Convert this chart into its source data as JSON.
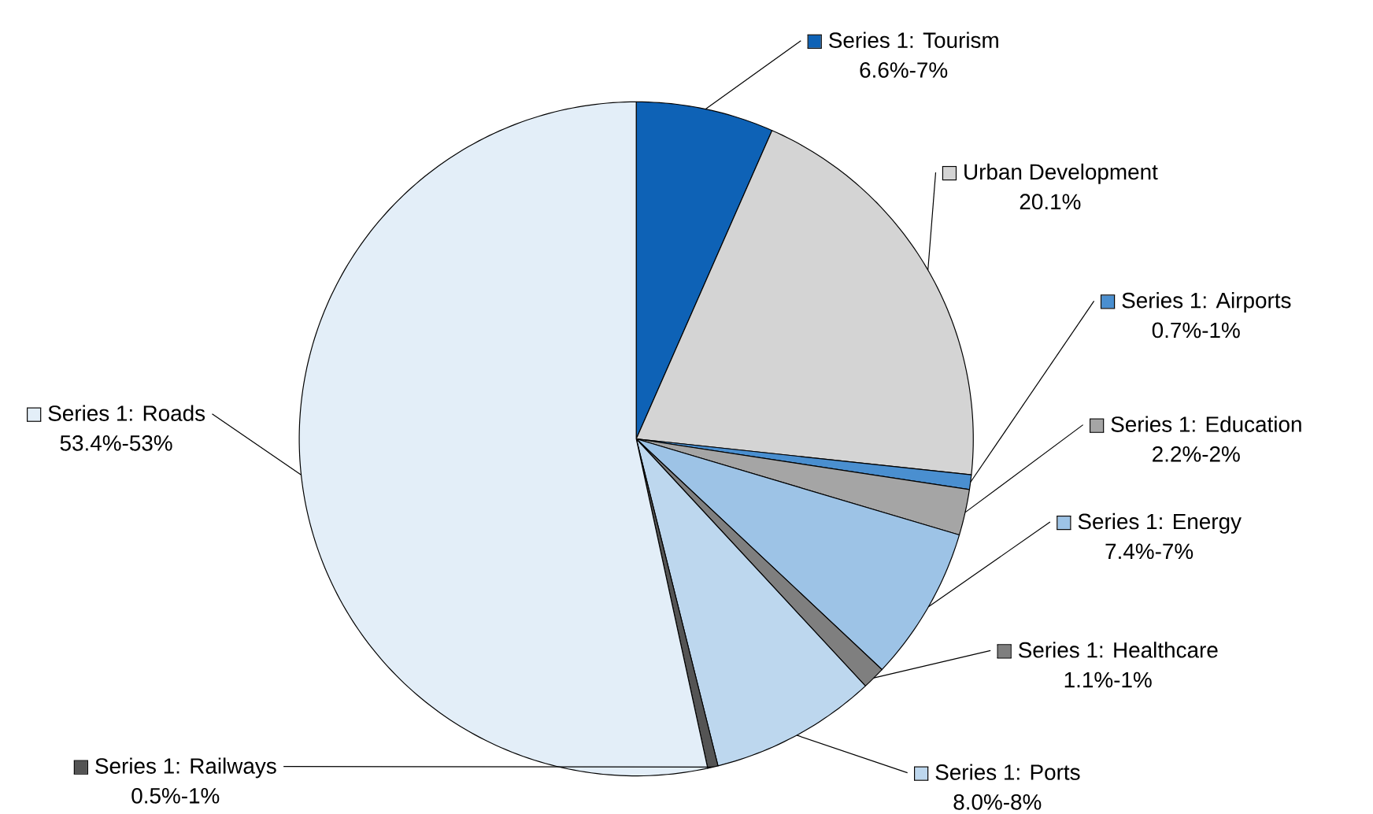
{
  "chart_data": {
    "type": "pie",
    "legend": "right",
    "categories": [
      "Series 1: Tourism",
      "Urban Development",
      "Series 1: Airports",
      "Series 1: Education",
      "Series 1: Energy",
      "Series 1: Healthcare",
      "Series 1: Ports",
      "Series 1: Railways",
      "Series 1: Roads"
    ],
    "values": [
      6.6,
      20.1,
      0.7,
      2.2,
      7.4,
      1.1,
      8.0,
      0.5,
      53.4
    ],
    "value_labels": [
      "6.6%-7%",
      "20.1%",
      "0.7%-1%",
      "2.2%-2%",
      "7.4%-7%",
      "1.1%-1%",
      "8.0%-8%",
      "0.5%-1%",
      "53.4%-53%"
    ],
    "colors": [
      "#0e62b6",
      "#d4d4d4",
      "#4a8fd0",
      "#a5a5a5",
      "#9dc3e6",
      "#7f7f7f",
      "#bdd7ee",
      "#545454",
      "#e3eef8"
    ]
  }
}
